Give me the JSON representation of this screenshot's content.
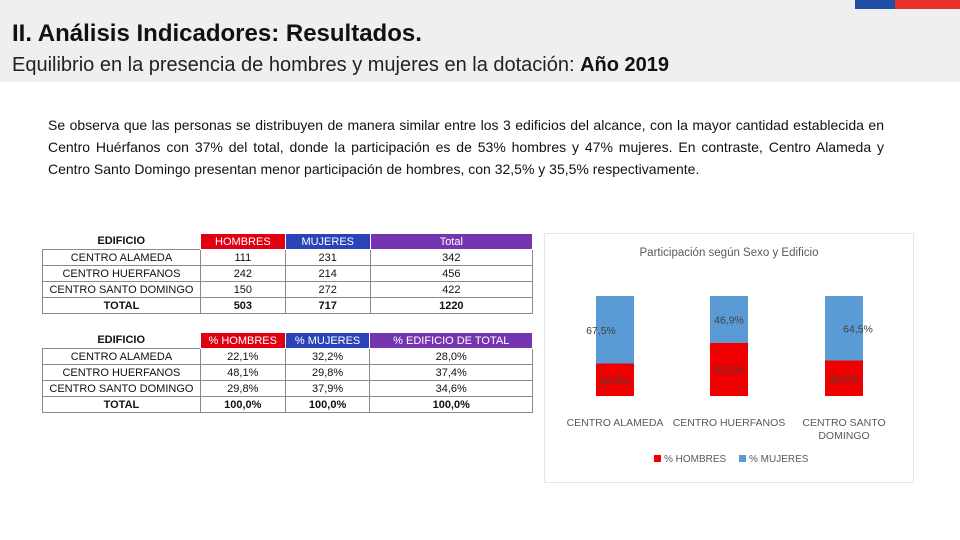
{
  "header": {
    "title": "II. Análisis Indicadores: Resultados.",
    "subtitle": "Equilibrio en la presencia de hombres y mujeres en la dotación:",
    "subtitle_year": "Año 2019"
  },
  "paragraph": "Se observa que las personas se distribuyen de manera similar entre los 3 edificios del alcance, con la mayor cantidad establecida en Centro Huérfanos con 37% del total, donde la participación es de 53% hombres y 47% mujeres. En contraste, Centro Alameda y Centro Santo Domingo presentan menor participación de hombres, con 32,5% y 35,5% respectivamente.",
  "table1": {
    "headers": [
      "EDIFICIO",
      "HOMBRES",
      "MUJERES",
      "Total"
    ],
    "rows": [
      [
        "CENTRO ALAMEDA",
        "111",
        "231",
        "342"
      ],
      [
        "CENTRO HUERFANOS",
        "242",
        "214",
        "456"
      ],
      [
        "CENTRO SANTO DOMINGO",
        "150",
        "272",
        "422"
      ]
    ],
    "total": [
      "TOTAL",
      "503",
      "717",
      "1220"
    ]
  },
  "table2": {
    "headers": [
      "EDIFICIO",
      "% HOMBRES",
      "% MUJERES",
      "% EDIFICIO DE TOTAL"
    ],
    "rows": [
      [
        "CENTRO ALAMEDA",
        "22,1%",
        "32,2%",
        "28,0%"
      ],
      [
        "CENTRO HUERFANOS",
        "48,1%",
        "29,8%",
        "37,4%"
      ],
      [
        "CENTRO SANTO DOMINGO",
        "29,8%",
        "37,9%",
        "34,6%"
      ]
    ],
    "total": [
      "TOTAL",
      "100,0%",
      "100,0%",
      "100,0%"
    ]
  },
  "colors": {
    "hombres": "#ee0000",
    "mujeres": "#5b9bd5",
    "header_red": "#e00012",
    "header_blue": "#2a43b8",
    "header_purple": "#7535b0"
  },
  "chart_data": {
    "type": "bar",
    "stacked": true,
    "title": "Participación según Sexo y Edificio",
    "categories": [
      "CENTRO ALAMEDA",
      "CENTRO HUERFANOS",
      "CENTRO SANTO DOMINGO"
    ],
    "category_lines": [
      [
        "CENTRO ALAMEDA"
      ],
      [
        "CENTRO HUERFANOS"
      ],
      [
        "CENTRO SANTO",
        "DOMINGO"
      ]
    ],
    "series": [
      {
        "name": "% HOMBRES",
        "values": [
          32.5,
          53.1,
          35.5
        ],
        "labels": [
          "32,5%",
          "53,1%",
          "35,5%"
        ],
        "color": "#ee0000"
      },
      {
        "name": "% MUJERES",
        "values": [
          67.5,
          46.9,
          64.5
        ],
        "labels": [
          "67,5%",
          "46,9%",
          "64,5%"
        ],
        "color": "#5b9bd5"
      }
    ],
    "ylim": [
      0,
      100
    ],
    "legend_position": "bottom"
  }
}
